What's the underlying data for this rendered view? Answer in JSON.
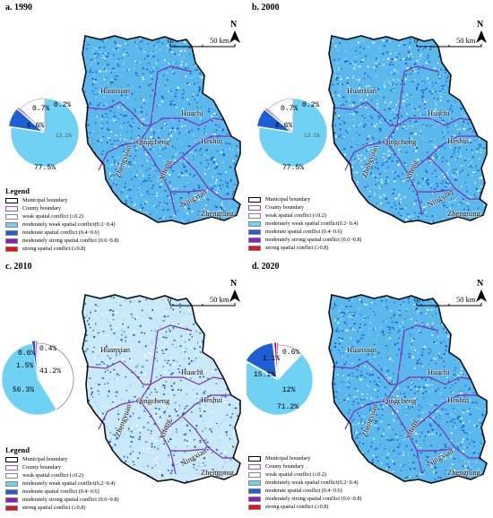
{
  "map": {
    "panels": [
      {
        "id": "a",
        "title": "a. 1990",
        "shares": {
          "weak": "",
          "moderately_weak": "77.5%",
          "moderate": "6.6%",
          "moderately_strong": "0.7%",
          "strong": "0.2%"
        },
        "small_label": "13.1%"
      },
      {
        "id": "b",
        "title": "b. 2000",
        "shares": {
          "weak": "",
          "moderately_weak": "77.5%",
          "moderate": "8.6%",
          "moderately_strong": "0.7%",
          "strong": "0.2%"
        },
        "small_label": "13.1%"
      },
      {
        "id": "c",
        "title": "c. 2010",
        "shares": {
          "weak": "41.2%",
          "moderately_weak": "56.3%",
          "moderate": "1.5%",
          "moderately_strong": "0.6%",
          "strong": "0.4%"
        },
        "small_label": ""
      },
      {
        "id": "d",
        "title": "d. 2020",
        "shares": {
          "weak": "12%",
          "moderately_weak": "71.2%",
          "moderate": "15.1%",
          "moderately_strong": "1.1%",
          "strong": "0.6%"
        },
        "small_label": ""
      }
    ],
    "places": {
      "huanxian": "Huanxian",
      "huachi": "Huachi",
      "qingcheng": "Qingcheng",
      "heshui": "Heshui",
      "zhengyuan": "Zhengyuan",
      "xifeng": "Xifeng",
      "ningxian": "Ningxian",
      "zhengning": "Zhengning"
    },
    "north_arrow": "N",
    "scale": {
      "zero": "0",
      "distance": "50 km"
    },
    "legend": {
      "title": "Legend",
      "items": [
        {
          "label": "Municipal boundary",
          "color": "#000000",
          "kind": "outline"
        },
        {
          "label": "County boundary",
          "color": "#a050c8",
          "kind": "outline"
        },
        {
          "label": "weak spatial conflict (≤0.2)",
          "color": "#ffffff",
          "kind": "fill"
        },
        {
          "label": "moderately weak spatial conflict(0.2~0.4)",
          "color": "#6fd1f4",
          "kind": "fill"
        },
        {
          "label": "moderate spatial conflict (0.4~0.6)",
          "color": "#1f5fd6",
          "kind": "fill"
        },
        {
          "label": "moderately strong spatial conflict (0.6~0.8)",
          "color": "#8a1ec2",
          "kind": "fill"
        },
        {
          "label": "strong spatial conflict (≥0.8)",
          "color": "#e0141a",
          "kind": "fill"
        }
      ]
    },
    "colors": {
      "map_fill": "#5ab8ec",
      "map_dots": "#1f63c9",
      "county": "#7a2fb0",
      "outline": "#111111"
    }
  }
}
